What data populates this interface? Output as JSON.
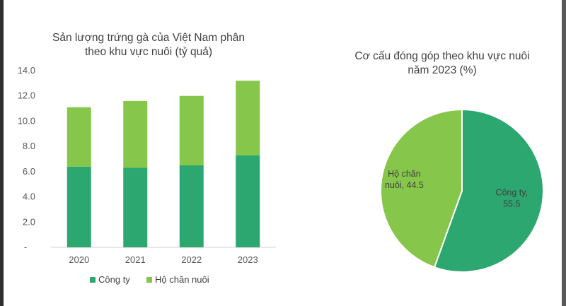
{
  "colors": {
    "cong_ty": "#2ca770",
    "ho_chan_nuoi": "#86c64a",
    "axis": "#d0d0d0"
  },
  "chart_data": [
    {
      "type": "bar",
      "stacked": true,
      "title_lines": [
        "Sản lượng trứng gà của Việt Nam phân",
        "theo khu vực nuôi (tỷ quả)"
      ],
      "categories": [
        "2020",
        "2021",
        "2022",
        "2023"
      ],
      "series": [
        {
          "name": "Công ty",
          "color": "#2ca770",
          "values": [
            6.4,
            6.3,
            6.5,
            7.3
          ]
        },
        {
          "name": "Hộ chăn nuôi",
          "color": "#86c64a",
          "values": [
            4.7,
            5.3,
            5.5,
            5.9
          ]
        }
      ],
      "ylim": [
        0,
        14
      ],
      "yticks": [
        "-",
        "2.0",
        "4.0",
        "6.0",
        "8.0",
        "10.0",
        "12.0",
        "14.0"
      ],
      "grid": false,
      "legend": "bottom"
    },
    {
      "type": "pie",
      "title_lines": [
        "Cơ cấu đóng góp theo khu vực nuôi",
        "năm 2023 (%)"
      ],
      "slices": [
        {
          "name": "Công ty",
          "value": 55.5,
          "label_lines": [
            "Công ty,",
            "55.5"
          ],
          "color": "#2ca770"
        },
        {
          "name": "Hộ chăn nuôi",
          "value": 44.5,
          "label_lines": [
            "Hộ chăn",
            "nuôi, 44.5"
          ],
          "color": "#86c64a"
        }
      ]
    }
  ]
}
